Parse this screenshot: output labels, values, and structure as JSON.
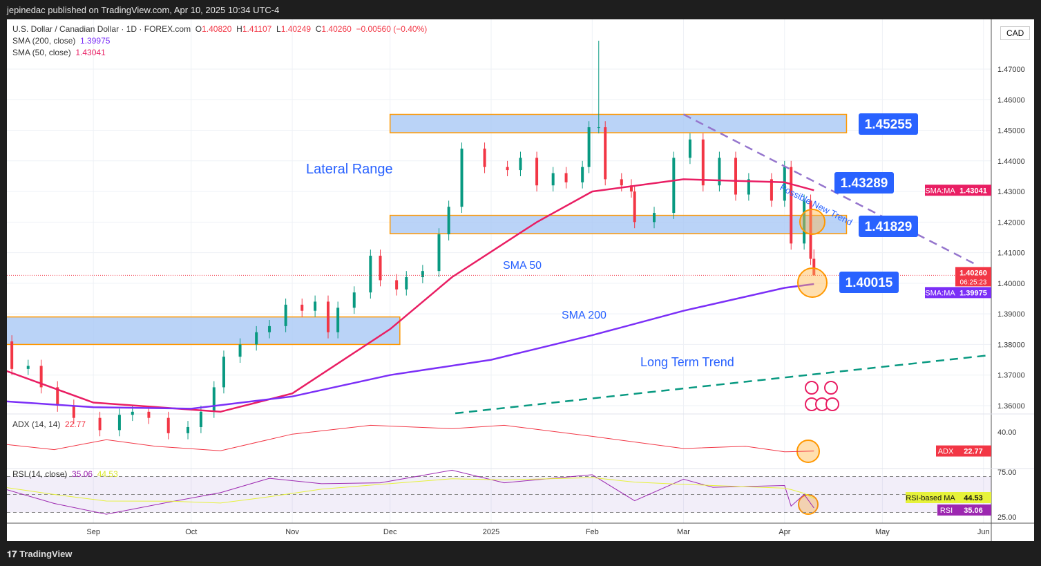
{
  "header": {
    "published": "jepinedac published on TradingView.com, Apr 10, 2025 10:34 UTC-4"
  },
  "legend": {
    "symbol": "U.S. Dollar / Canadian Dollar · 1D · FOREX.com",
    "o_label": "O",
    "o": "1.40820",
    "h_label": "H",
    "h": "1.41107",
    "l_label": "L",
    "l": "1.40249",
    "c_label": "C",
    "c": "1.40260",
    "change": "−0.00560 (−0.40%)",
    "sma200_label": "SMA (200, close)",
    "sma200": "1.39975",
    "sma50_label": "SMA (50, close)",
    "sma50": "1.43041",
    "adx_label": "ADX (14, 14)",
    "adx": "22.77",
    "rsi_label": "RSI (14, close)",
    "rsi": "35.06",
    "rsi_ma": "44.53"
  },
  "currency": "CAD",
  "footer": {
    "brand": "TradingView"
  },
  "colors": {
    "up": "#089981",
    "down": "#f23645",
    "sma50": "#e91e63",
    "sma200": "#7b2ff7",
    "zone": "#a9c8f5",
    "zone_border": "#ff9800",
    "label_bg": "#2962ff",
    "adx": "#f23645",
    "rsi": "#9c27b0",
    "rsi_ma": "#e6f23a",
    "new_trend": "#9575cd",
    "long_term": "#089981"
  },
  "chart_data": {
    "type": "candlestick",
    "ylim": [
      1.355,
      1.48
    ],
    "y_ticks": [
      "1.47000",
      "1.46000",
      "1.45000",
      "1.44000",
      "1.43000",
      "1.42000",
      "1.41000",
      "1.40000",
      "1.39000",
      "1.38000",
      "1.37000",
      "1.36000"
    ],
    "x_ticks": [
      [
        "2024-09-01",
        "Sep"
      ],
      [
        "2024-10-01",
        "Oct"
      ],
      [
        "2024-11-01",
        "Nov"
      ],
      [
        "2024-12-01",
        "Dec"
      ],
      [
        "2025-01-01",
        "2025"
      ],
      [
        "2025-02-01",
        "Feb"
      ],
      [
        "2025-03-01",
        "Mar"
      ],
      [
        "2025-04-01",
        "Apr"
      ],
      [
        "2025-05-01",
        "May"
      ],
      [
        "2025-06-01",
        "Jun"
      ]
    ],
    "close": [
      [
        "2024-08-02",
        1.381
      ],
      [
        "2024-08-07",
        1.372
      ],
      [
        "2024-08-12",
        1.373
      ],
      [
        "2024-08-16",
        1.366
      ],
      [
        "2024-08-21",
        1.36
      ],
      [
        "2024-08-26",
        1.356
      ],
      [
        "2024-09-03",
        1.352
      ],
      [
        "2024-09-09",
        1.357
      ],
      [
        "2024-09-13",
        1.358
      ],
      [
        "2024-09-18",
        1.356
      ],
      [
        "2024-09-24",
        1.351
      ],
      [
        "2024-09-30",
        1.353
      ],
      [
        "2024-10-04",
        1.358
      ],
      [
        "2024-10-08",
        1.366
      ],
      [
        "2024-10-11",
        1.376
      ],
      [
        "2024-10-16",
        1.38
      ],
      [
        "2024-10-21",
        1.384
      ],
      [
        "2024-10-25",
        1.386
      ],
      [
        "2024-10-30",
        1.393
      ],
      [
        "2024-11-04",
        1.391
      ],
      [
        "2024-11-08",
        1.394
      ],
      [
        "2024-11-12",
        1.384
      ],
      [
        "2024-11-15",
        1.392
      ],
      [
        "2024-11-20",
        1.397
      ],
      [
        "2024-11-25",
        1.409
      ],
      [
        "2024-11-28",
        1.401
      ],
      [
        "2024-12-03",
        1.398
      ],
      [
        "2024-12-06",
        1.402
      ],
      [
        "2024-12-11",
        1.404
      ],
      [
        "2024-12-16",
        1.416
      ],
      [
        "2024-12-19",
        1.425
      ],
      [
        "2024-12-23",
        1.444
      ],
      [
        "2024-12-30",
        1.438
      ],
      [
        "2025-01-06",
        1.437
      ],
      [
        "2025-01-10",
        1.441
      ],
      [
        "2025-01-15",
        1.432
      ],
      [
        "2025-01-20",
        1.436
      ],
      [
        "2025-01-24",
        1.433
      ],
      [
        "2025-01-29",
        1.438
      ],
      [
        "2025-01-31",
        1.451
      ],
      [
        "2025-02-03",
        1.451
      ],
      [
        "2025-02-05",
        1.434
      ],
      [
        "2025-02-10",
        1.432
      ],
      [
        "2025-02-13",
        1.43
      ],
      [
        "2025-02-14",
        1.42
      ],
      [
        "2025-02-20",
        1.423
      ],
      [
        "2025-02-26",
        1.441
      ],
      [
        "2025-03-03",
        1.447
      ],
      [
        "2025-03-07",
        1.432
      ],
      [
        "2025-03-12",
        1.441
      ],
      [
        "2025-03-17",
        1.429
      ],
      [
        "2025-03-21",
        1.434
      ],
      [
        "2025-03-28",
        1.427
      ],
      [
        "2025-04-01",
        1.438
      ],
      [
        "2025-04-03",
        1.413
      ],
      [
        "2025-04-07",
        1.427
      ],
      [
        "2025-04-09",
        1.408
      ],
      [
        "2025-04-10",
        1.4026
      ]
    ],
    "spike_high": [
      "2025-02-03",
      1.4793
    ],
    "last_candle": {
      "open": 1.4082,
      "high": 1.41107,
      "low": 1.40249,
      "close": 1.4026
    },
    "sma50": [
      [
        "2024-08-01",
        1.373
      ],
      [
        "2024-09-01",
        1.361
      ],
      [
        "2024-10-10",
        1.358
      ],
      [
        "2024-11-01",
        1.364
      ],
      [
        "2024-12-01",
        1.385
      ],
      [
        "2024-12-20",
        1.402
      ],
      [
        "2025-01-15",
        1.42
      ],
      [
        "2025-02-01",
        1.43
      ],
      [
        "2025-03-01",
        1.434
      ],
      [
        "2025-04-01",
        1.433
      ],
      [
        "2025-04-10",
        1.43041
      ]
    ],
    "sma200": [
      [
        "2024-08-01",
        1.3617
      ],
      [
        "2024-09-01",
        1.3595
      ],
      [
        "2024-10-01",
        1.359
      ],
      [
        "2024-11-01",
        1.363
      ],
      [
        "2024-12-01",
        1.37
      ],
      [
        "2025-01-01",
        1.375
      ],
      [
        "2025-02-01",
        1.383
      ],
      [
        "2025-03-01",
        1.391
      ],
      [
        "2025-04-01",
        1.3985
      ],
      [
        "2025-04-10",
        1.39975
      ]
    ],
    "zones": [
      {
        "from": "2024-12-01",
        "to": "2025-04-20",
        "low": 1.4492,
        "high": 1.4552
      },
      {
        "from": "2024-12-01",
        "to": "2025-04-20",
        "low": 1.4162,
        "high": 1.4222
      },
      {
        "from": "2024-08-01",
        "to": "2024-12-04",
        "low": 1.38,
        "high": 1.389
      }
    ],
    "trendlines": [
      {
        "name": "possible-new-trend",
        "from": [
          "2025-03-01",
          1.4552
        ],
        "to": [
          "2025-05-29",
          1.4065
        ]
      },
      {
        "name": "long-term-trend",
        "from": [
          "2024-12-21",
          1.3575
        ],
        "to": [
          "2025-06-03",
          1.3765
        ]
      }
    ],
    "price_labels": [
      "1.45255",
      "1.43289",
      "1.41829",
      "1.40015"
    ],
    "annotations": {
      "lateral": "Lateral Range",
      "sma50": "SMA 50",
      "sma200": "SMA 200",
      "long_term": "Long Term Trend",
      "new_trend": "Possible New Trend"
    },
    "axis_tags": {
      "sma50_tag": "SMA:MA",
      "sma200_tag": "SMA:MA",
      "price": "1.40260",
      "countdown": "06:25:23",
      "adx_tag": "ADX",
      "rsi_ma_tag": "RSI-based MA",
      "rsi_tag": "RSI"
    },
    "adx": {
      "ticks": [
        "40.00"
      ],
      "values": [
        [
          "2024-08-01",
          30
        ],
        [
          "2024-08-20",
          24
        ],
        [
          "2024-09-05",
          33
        ],
        [
          "2024-09-20",
          27
        ],
        [
          "2024-10-10",
          23
        ],
        [
          "2024-11-01",
          38
        ],
        [
          "2024-11-25",
          46
        ],
        [
          "2024-12-20",
          43
        ],
        [
          "2025-01-05",
          46
        ],
        [
          "2025-02-01",
          36
        ],
        [
          "2025-03-01",
          25
        ],
        [
          "2025-03-20",
          27
        ],
        [
          "2025-04-01",
          22
        ],
        [
          "2025-04-10",
          22.77
        ]
      ]
    },
    "rsi": {
      "ticks": [
        "75.00",
        "25.00"
      ],
      "bands": [
        70,
        30
      ],
      "values": [
        [
          "2024-08-01",
          60
        ],
        [
          "2024-08-20",
          40
        ],
        [
          "2024-09-05",
          28
        ],
        [
          "2024-09-25",
          42
        ],
        [
          "2024-10-10",
          52
        ],
        [
          "2024-10-25",
          68
        ],
        [
          "2024-11-10",
          62
        ],
        [
          "2024-11-28",
          63
        ],
        [
          "2024-12-20",
          77
        ],
        [
          "2025-01-05",
          63
        ],
        [
          "2025-02-01",
          72
        ],
        [
          "2025-02-14",
          43
        ],
        [
          "2025-03-01",
          67
        ],
        [
          "2025-03-10",
          58
        ],
        [
          "2025-04-01",
          60
        ],
        [
          "2025-04-03",
          37
        ],
        [
          "2025-04-07",
          50
        ],
        [
          "2025-04-10",
          35.06
        ]
      ]
    }
  }
}
